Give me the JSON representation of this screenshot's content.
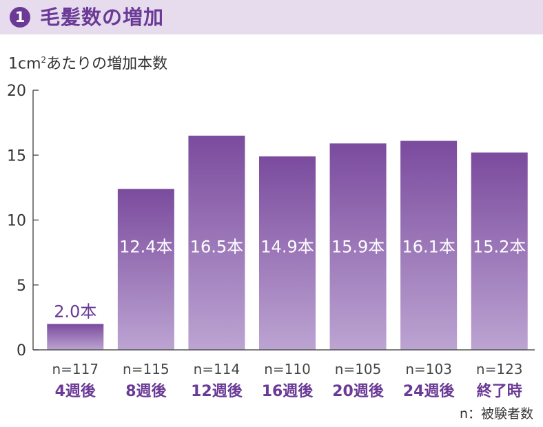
{
  "header": {
    "badge": "1",
    "title": "毛髪数の増加"
  },
  "ylabel_prefix": "1cm",
  "ylabel_sup": "2",
  "ylabel_suffix": "あたりの増加本数",
  "footnote": "n：被験者数",
  "colors": {
    "accent": "#6a3a96",
    "bar_top": "#7b4b9e",
    "bar_bottom": "#bca4d2",
    "label_purple": "#6a3a96"
  },
  "chart_data": {
    "type": "bar",
    "ylim": [
      0,
      20
    ],
    "yticks": [
      "0",
      "5",
      "10",
      "15",
      "20"
    ],
    "ytick_values": [
      0,
      5,
      10,
      15,
      20
    ],
    "grid": false,
    "categories": [
      "4週後",
      "8週後",
      "12週後",
      "16週後",
      "20週後",
      "24週後",
      "終了時"
    ],
    "n_labels": [
      "n=117",
      "n=115",
      "n=114",
      "n=110",
      "n=105",
      "n=103",
      "n=123"
    ],
    "values": [
      2.0,
      12.4,
      16.5,
      14.9,
      15.9,
      16.1,
      15.2
    ],
    "value_labels": [
      "2.0本",
      "12.4本",
      "16.5本",
      "14.9本",
      "15.9本",
      "16.1本",
      "15.2本"
    ]
  }
}
